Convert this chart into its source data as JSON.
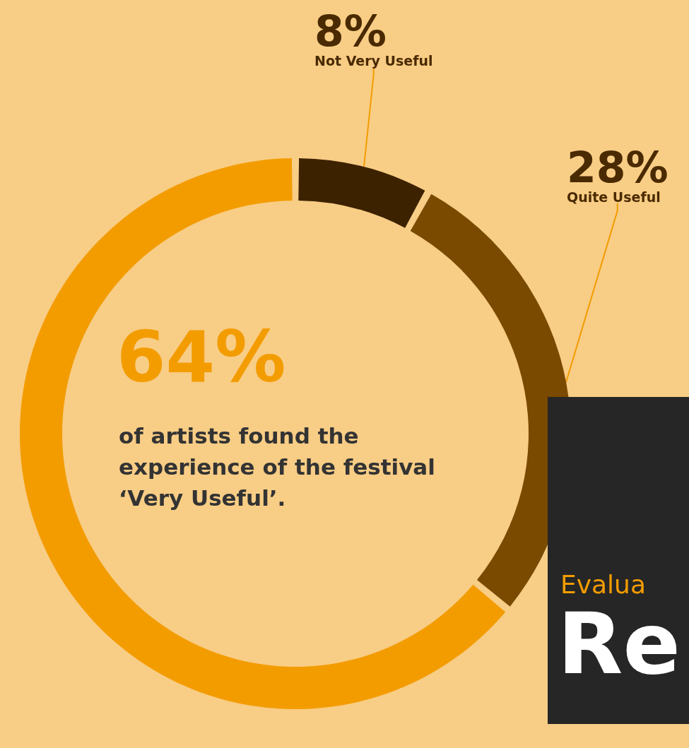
{
  "chart_data": {
    "type": "donut",
    "categories": [
      "Not Very Useful",
      "Quite Useful",
      null
    ],
    "values": [
      8,
      28,
      64
    ],
    "colors": [
      "#3d2200",
      "#7a4a00",
      "#f39c00"
    ],
    "value_labels": [
      "8%",
      "28%",
      "64%"
    ],
    "legend": false,
    "annotations": [
      "of artists found the experience of the festival ‘Very Useful’.",
      "Evalua",
      "Re"
    ]
  }
}
